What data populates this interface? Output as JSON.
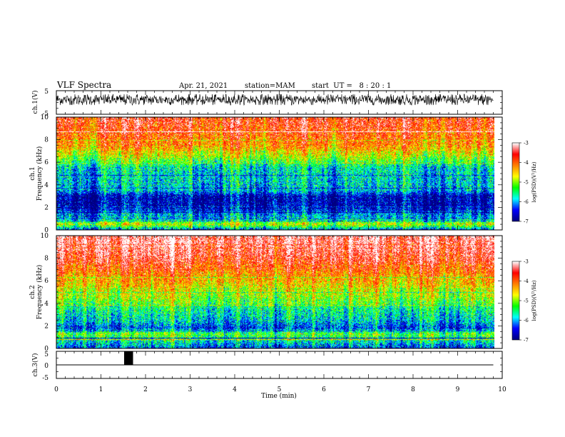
{
  "header": {
    "title": "VLF Spectra",
    "date": "Apr. 21, 2021",
    "station": "station=MAM",
    "start": "start  UT =   8 : 20 : 1"
  },
  "chart_data": [
    {
      "type": "line",
      "panel": "ch1-waveform",
      "ylabel": "ch.1(V)",
      "ylim": [
        -5,
        5
      ],
      "yticks": [
        "5",
        "-5"
      ],
      "xlim": [
        0,
        10
      ],
      "data_extent_min": 9.8,
      "description_values": {
        "envelope_min": -1.1,
        "envelope_max": 3.5
      }
    },
    {
      "type": "heatmap",
      "panel": "ch1-spectrogram",
      "ylabel_line1": "ch.1",
      "ylabel_line2": "Frequency (kHz)",
      "ylim": [
        0,
        10
      ],
      "yticks": [
        "0",
        "2",
        "4",
        "6",
        "8",
        "10"
      ],
      "xlim": [
        0,
        10
      ],
      "colorbar": {
        "label": "log(PSD)(V²/Hz)",
        "range": [
          -7,
          -3
        ],
        "ticks": [
          "-3",
          "-4",
          "-5",
          "-6",
          "-7"
        ]
      },
      "profile_log_psd_by_khz": [
        {
          "f": 0.0,
          "v": -6.3
        },
        {
          "f": 0.5,
          "v": -4.8
        },
        {
          "f": 1.0,
          "v": -6.0
        },
        {
          "f": 1.5,
          "v": -6.2
        },
        {
          "f": 2.0,
          "v": -6.8
        },
        {
          "f": 3.0,
          "v": -6.8
        },
        {
          "f": 3.5,
          "v": -6.0
        },
        {
          "f": 4.5,
          "v": -5.9
        },
        {
          "f": 5.5,
          "v": -5.8
        },
        {
          "f": 6.5,
          "v": -4.9
        },
        {
          "f": 7.5,
          "v": -4.2
        },
        {
          "f": 9.0,
          "v": -3.8
        },
        {
          "f": 10.0,
          "v": -3.6
        }
      ]
    },
    {
      "type": "heatmap",
      "panel": "ch2-spectrogram",
      "ylabel_line1": "ch.2",
      "ylabel_line2": "Frequency (kHz)",
      "ylim": [
        0,
        10
      ],
      "yticks": [
        "0",
        "2",
        "4",
        "6",
        "8",
        "10"
      ],
      "xlim": [
        0,
        10
      ],
      "colorbar": {
        "label": "log(PSD)(V²/Hz)",
        "range": [
          -7,
          -3
        ],
        "ticks": [
          "-3",
          "-4",
          "-5",
          "-6",
          "-7"
        ]
      },
      "profile_log_psd_by_khz": [
        {
          "f": 0.0,
          "v": -6.4
        },
        {
          "f": 0.8,
          "v": -5.6
        },
        {
          "f": 1.3,
          "v": -5.2
        },
        {
          "f": 1.8,
          "v": -6.4
        },
        {
          "f": 2.5,
          "v": -5.9
        },
        {
          "f": 3.5,
          "v": -5.6
        },
        {
          "f": 4.5,
          "v": -5.0
        },
        {
          "f": 5.5,
          "v": -4.6
        },
        {
          "f": 6.5,
          "v": -4.2
        },
        {
          "f": 7.5,
          "v": -3.7
        },
        {
          "f": 9.0,
          "v": -3.3
        },
        {
          "f": 10.0,
          "v": -3.2
        }
      ]
    },
    {
      "type": "line",
      "panel": "ch3-waveform",
      "ylabel": "ch.3(V)",
      "ylim": [
        -5,
        5
      ],
      "yticks": [
        "5",
        "0",
        "-5"
      ],
      "xlim": [
        0,
        10
      ],
      "xlabel": "Time (min)",
      "xticks": [
        "0",
        "1",
        "2",
        "3",
        "4",
        "5",
        "6",
        "7",
        "8",
        "9",
        "10"
      ],
      "baseline_v": 0,
      "pulse": {
        "x_start": 1.52,
        "x_end": 1.72,
        "low": 0,
        "high": 5
      }
    }
  ],
  "colors": {
    "background": "#ffffff",
    "axis": "#000000",
    "trace": "#000000",
    "colormap": [
      "#000080",
      "#0000ff",
      "#00ffff",
      "#00ff00",
      "#ffff00",
      "#ff8000",
      "#ff0000",
      "#ffffff"
    ]
  }
}
